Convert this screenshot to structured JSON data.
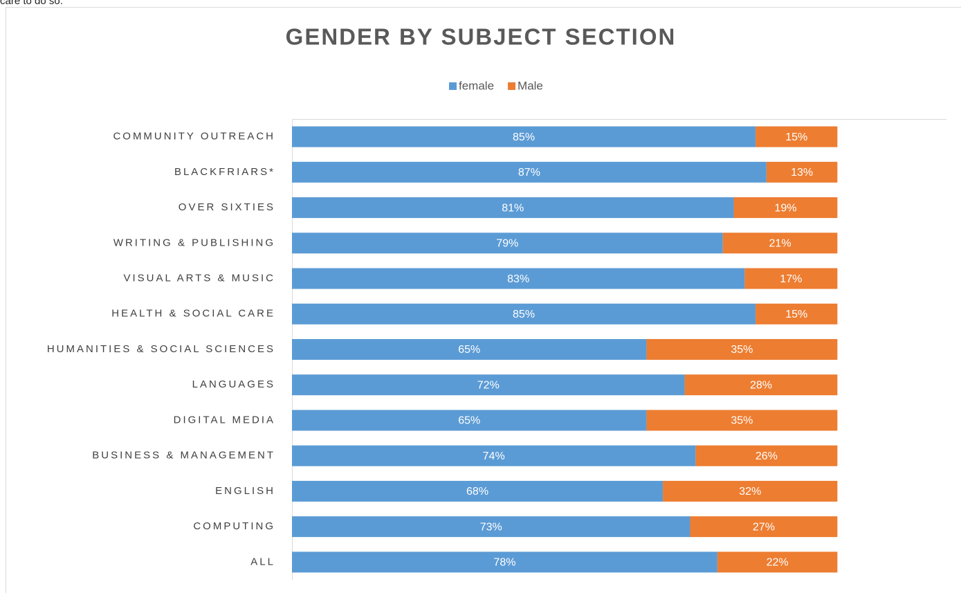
{
  "intro_text": "care to do so.",
  "chart_data": {
    "type": "stacked_barh",
    "title": "GENDER BY SUBJECT SECTION",
    "categories": [
      "COMMUNITY OUTREACH",
      "BLACKFRIARS*",
      "OVER SIXTIES",
      "WRITING & PUBLISHING",
      "VISUAL ARTS & MUSIC",
      "HEALTH & SOCIAL CARE",
      "HUMANITIES & SOCIAL SCIENCES",
      "LANGUAGES",
      "DIGITAL MEDIA",
      "BUSINESS & MANAGEMENT",
      "ENGLISH",
      "COMPUTING",
      "ALL"
    ],
    "series": [
      {
        "name": "female",
        "color": "#5b9bd5",
        "values": [
          85,
          87,
          81,
          79,
          83,
          85,
          65,
          72,
          65,
          74,
          68,
          73,
          78
        ],
        "value_labels": [
          "85%",
          "87%",
          "81%",
          "79%",
          "83%",
          "85%",
          "65%",
          "72%",
          "65%",
          "74%",
          "68%",
          "73%",
          "78%"
        ]
      },
      {
        "name": "Male",
        "color": "#ed7d31",
        "values": [
          15,
          13,
          19,
          21,
          17,
          15,
          35,
          28,
          35,
          26,
          32,
          27,
          22
        ],
        "value_labels": [
          "15%",
          "13%",
          "19%",
          "21%",
          "17%",
          "15%",
          "35%",
          "28%",
          "35%",
          "26%",
          "32%",
          "27%",
          "22%"
        ]
      }
    ],
    "xlim": [
      0,
      120
    ],
    "legend": "top"
  }
}
